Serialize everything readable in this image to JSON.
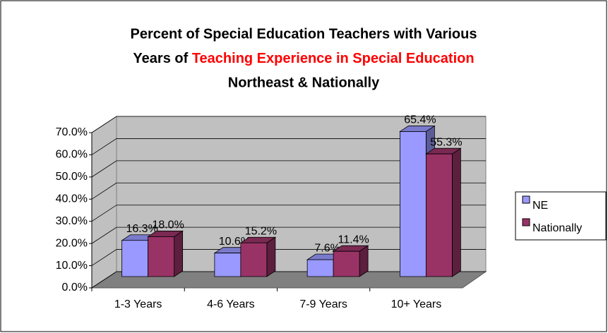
{
  "chart_data": {
    "type": "bar3d",
    "title": {
      "line1": "Percent of Special Education Teachers with Various",
      "line2": "Years of",
      "line2_highlight": "Teaching Experience in Special Education",
      "line3": "Northeast & Nationally"
    },
    "categories": [
      "1-3 Years",
      "4-6 Years",
      "7-9 Years",
      "10+ Years"
    ],
    "series": [
      {
        "name": "NE",
        "color": "#9999ff",
        "values": [
          16.3,
          10.6,
          7.6,
          65.4
        ],
        "value_labels": [
          "16.3%",
          "10.6%",
          "7.6%",
          "65.4%"
        ]
      },
      {
        "name": "Nationally",
        "color": "#993366",
        "values": [
          18.0,
          15.2,
          11.4,
          55.3
        ],
        "value_labels": [
          "18.0%",
          "15.2%",
          "11.4%",
          "55.3%"
        ]
      }
    ],
    "ylim": [
      0,
      70
    ],
    "yticks": [
      {
        "value": 0,
        "label": "0.0%"
      },
      {
        "value": 10,
        "label": "10.0%"
      },
      {
        "value": 20,
        "label": "20.0%"
      },
      {
        "value": 30,
        "label": "30.0%"
      },
      {
        "value": 40,
        "label": "40.0%"
      },
      {
        "value": 50,
        "label": "50.0%"
      },
      {
        "value": 60,
        "label": "60.0%"
      },
      {
        "value": 70,
        "label": "70.0%"
      }
    ],
    "grid": true,
    "legend": "right"
  }
}
